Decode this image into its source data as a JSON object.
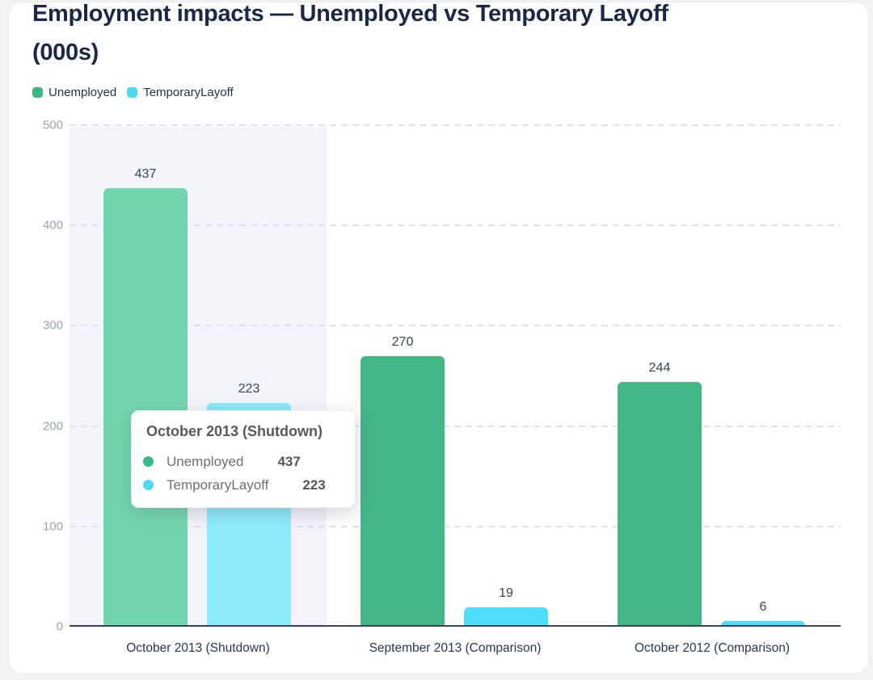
{
  "page": {
    "background": "#f2f2f4",
    "card_background": "#ffffff"
  },
  "header": {
    "title_line1": "Employment impacts — Unemployed vs Temporary Layoff",
    "title_line2": "(000s)"
  },
  "legend": {
    "items": [
      {
        "label": "Unemployed",
        "color": "#3fb484"
      },
      {
        "label": "TemporaryLayoff",
        "color": "#4fd9f5"
      }
    ]
  },
  "chart_data": {
    "type": "bar",
    "title": "Employment impacts — Unemployed vs Temporary Layoff (000s)",
    "categories": [
      "October 2013 (Shutdown)",
      "September 2013 (Comparison)",
      "October 2012 (Comparison)"
    ],
    "series": [
      {
        "name": "Unemployed",
        "color": "#44b686",
        "color_highlighted": "#74d6af",
        "values": [
          437,
          270,
          244
        ]
      },
      {
        "name": "TemporaryLayoff",
        "color": "#4fdcfa",
        "color_highlighted": "#8deaf8",
        "values": [
          223,
          19,
          6
        ]
      }
    ],
    "ylim": [
      0,
      500
    ],
    "yticks": [
      0,
      100,
      200,
      300,
      400,
      500
    ],
    "grid": "horizontal-dashed",
    "legend_position": "top-left",
    "value_labels": true,
    "highlighted_category_index": 0,
    "colors": {
      "band": "#f3f4f9",
      "grid": "#dee1e8",
      "axis_line": "#3b4459",
      "tick_label": "#9aa1ad",
      "category_label": "#2b3653",
      "value_label": "#3a445e"
    }
  },
  "tooltip": {
    "title": "October 2013 (Shutdown)",
    "rows": [
      {
        "label": "Unemployed",
        "value": "437",
        "color": "#36ba8c"
      },
      {
        "label": "TemporaryLayoff",
        "value": "223",
        "color": "#4fd9f5"
      }
    ]
  }
}
